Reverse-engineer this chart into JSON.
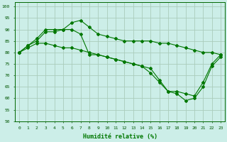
{
  "xlabel": "Humidité relative (%)",
  "bg_color": "#cceee8",
  "grid_color": "#aaccbb",
  "line_color": "#007700",
  "xlim": [
    -0.5,
    23.5
  ],
  "ylim": [
    50,
    102
  ],
  "yticks": [
    50,
    55,
    60,
    65,
    70,
    75,
    80,
    85,
    90,
    95,
    100
  ],
  "xticks": [
    0,
    1,
    2,
    3,
    4,
    5,
    6,
    7,
    8,
    9,
    10,
    11,
    12,
    13,
    14,
    15,
    16,
    17,
    18,
    19,
    20,
    21,
    22,
    23
  ],
  "series": [
    [
      80,
      83,
      86,
      90,
      90,
      90,
      93,
      94,
      91,
      88,
      87,
      86,
      85,
      85,
      85,
      85,
      84,
      84,
      83,
      82,
      81,
      80,
      80,
      79
    ],
    [
      80,
      83,
      85,
      89,
      89,
      90,
      90,
      88,
      79,
      79,
      78,
      77,
      76,
      75,
      74,
      73,
      68,
      63,
      63,
      62,
      61,
      67,
      75,
      79
    ],
    [
      80,
      82,
      84,
      84,
      83,
      82,
      82,
      81,
      80,
      79,
      78,
      77,
      76,
      75,
      74,
      71,
      67,
      63,
      62,
      59,
      60,
      65,
      74,
      78
    ]
  ]
}
